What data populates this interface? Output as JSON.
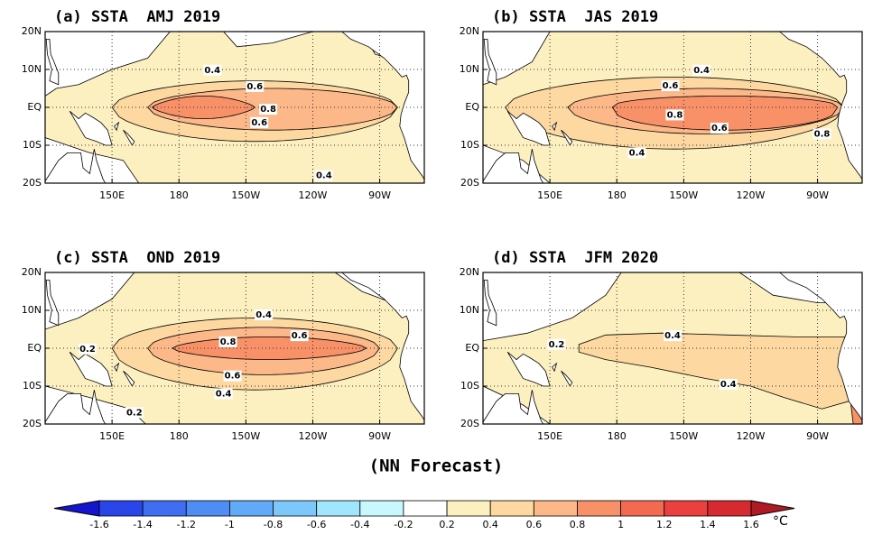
{
  "panels": [
    {
      "title": "(a) SSTA  AMJ 2019",
      "contour_labels": [
        0.4,
        0.6,
        0.8,
        0.6,
        0.4
      ]
    },
    {
      "title": "(b) SSTA  JAS 2019",
      "contour_labels": [
        0.4,
        0.6,
        0.8,
        0.6,
        0.8,
        0.4
      ]
    },
    {
      "title": "(c) SSTA  OND 2019",
      "contour_labels": [
        0.4,
        0.2,
        0.8,
        0.6,
        0.6,
        0.4,
        0.2
      ]
    },
    {
      "title": "(d) SSTA  JFM 2020",
      "contour_labels": [
        0.2,
        0.4,
        0.4
      ]
    }
  ],
  "map": {
    "xlim": [
      120,
      290
    ],
    "ylim": [
      -20,
      20
    ],
    "xticks": [
      {
        "value": 150,
        "label": "150E"
      },
      {
        "value": 180,
        "label": "180"
      },
      {
        "value": 210,
        "label": "150W"
      },
      {
        "value": 240,
        "label": "120W"
      },
      {
        "value": 270,
        "label": "90W"
      }
    ],
    "yticks": [
      {
        "value": 20,
        "label": "20N"
      },
      {
        "value": 10,
        "label": "10N"
      },
      {
        "value": 0,
        "label": "EQ"
      },
      {
        "value": -10,
        "label": "10S"
      },
      {
        "value": -20,
        "label": "20S"
      }
    ]
  },
  "caption": "(NN Forecast)",
  "colorbar": {
    "ticks": [
      -1.6,
      -1.4,
      -1.2,
      -1,
      -0.8,
      -0.6,
      -0.4,
      -0.2,
      0.2,
      0.4,
      0.6,
      0.8,
      1,
      1.2,
      1.4,
      1.6
    ],
    "colors": [
      "#1515d0",
      "#2a46e8",
      "#3f6ef0",
      "#4f8cf4",
      "#60aaf8",
      "#7cc8fa",
      "#a0e6fc",
      "#c8f8fe",
      "#ffffff",
      "#fdf0c0",
      "#fdd8a0",
      "#fcb888",
      "#f89068",
      "#f46a50",
      "#ea4040",
      "#d42a30",
      "#b01a24"
    ],
    "unit": "°C"
  }
}
